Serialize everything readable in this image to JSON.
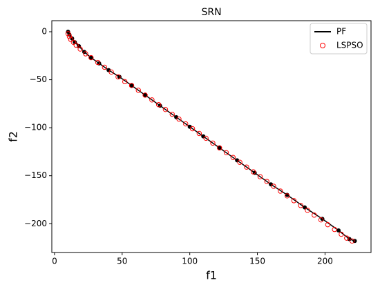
{
  "chart_data": {
    "type": "scatter",
    "title": "SRN",
    "x_label": "f1",
    "y_label": "f2",
    "xlim": [
      -2,
      234
    ],
    "ylim": [
      -230,
      11.5
    ],
    "xticks": [
      0,
      50,
      100,
      150,
      200
    ],
    "yticks": [
      {
        "value": -200,
        "label": "−200"
      },
      {
        "value": -150,
        "label": "−150"
      },
      {
        "value": -100,
        "label": "−100"
      },
      {
        "value": -50,
        "label": "−50"
      },
      0
    ],
    "legend": "upper-right",
    "series": [
      {
        "name": "PF",
        "color": "#000000",
        "style": "line",
        "markers": true,
        "x": [
          10,
          11,
          13,
          15,
          18,
          22,
          27,
          33,
          40,
          48,
          57,
          67,
          78,
          90,
          100,
          110,
          122,
          135,
          148,
          160,
          172,
          185,
          198,
          210,
          218,
          222
        ],
        "values": [
          0,
          -3,
          -7,
          -11,
          -15,
          -21,
          -27,
          -33,
          -40,
          -47,
          -56,
          -66,
          -77,
          -89,
          -99,
          -109,
          -121,
          -134,
          -147,
          -159,
          -170,
          -183,
          -195,
          -207,
          -216,
          -218
        ]
      },
      {
        "name": "LSPSO",
        "color": "#ff0000",
        "style": "open-circle",
        "markers": true,
        "x": [
          10,
          11,
          12,
          14,
          16,
          19,
          23,
          27,
          32,
          37,
          42,
          47,
          52,
          57,
          62,
          67,
          72,
          77,
          82,
          87,
          92,
          97,
          102,
          107,
          112,
          117,
          122,
          127,
          132,
          137,
          142,
          147,
          152,
          157,
          162,
          167,
          172,
          177,
          182,
          187,
          192,
          197,
          202,
          207,
          212,
          216,
          220
        ],
        "values": [
          -2,
          -5,
          -8,
          -11,
          -14,
          -18,
          -23,
          -27,
          -32,
          -37,
          -42,
          -47,
          -52,
          -56,
          -61,
          -66,
          -71,
          -76,
          -81,
          -86,
          -91,
          -96,
          -101,
          -106,
          -111,
          -116,
          -121,
          -126,
          -131,
          -136,
          -141,
          -146,
          -151,
          -156,
          -161,
          -166,
          -171,
          -176,
          -181,
          -186,
          -191,
          -196,
          -201,
          -206,
          -211,
          -215,
          -218
        ]
      }
    ]
  }
}
